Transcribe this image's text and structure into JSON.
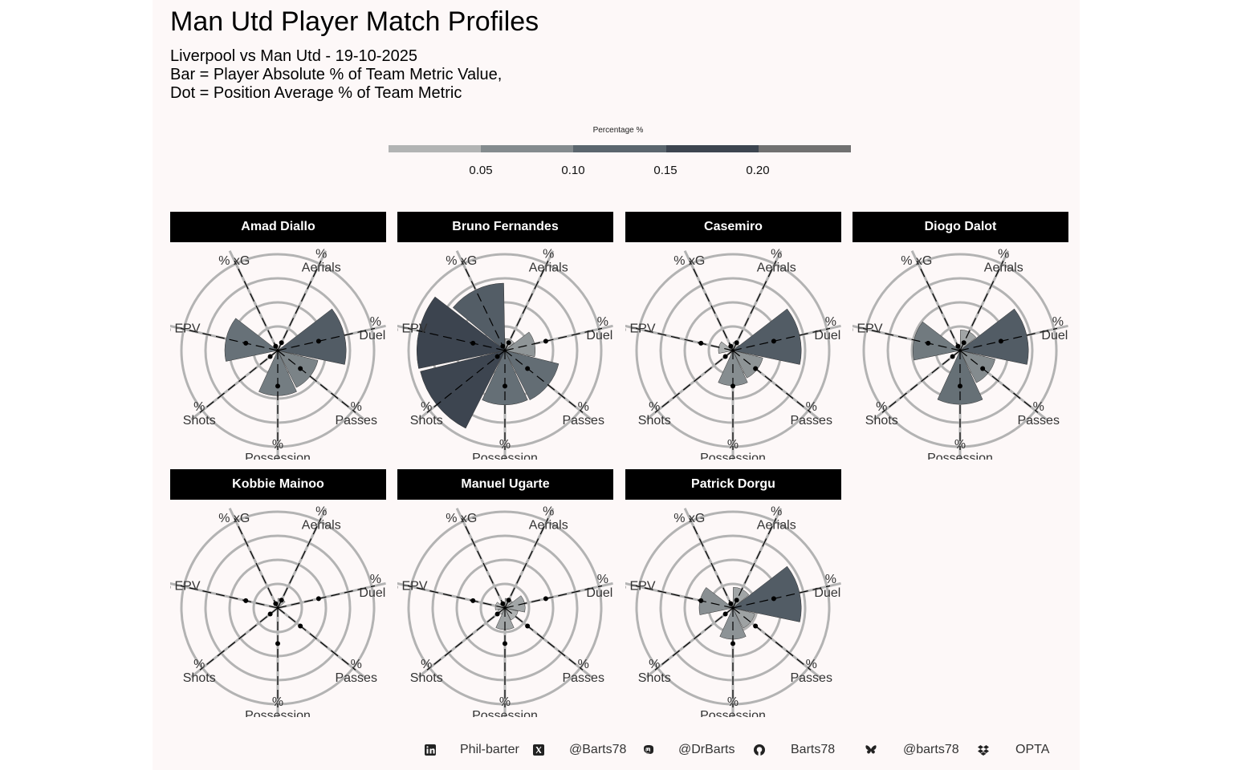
{
  "header": {
    "title": "Man Utd Player Match Profiles",
    "subtitle_lines": [
      "Liverpool vs Man Utd - 19-10-2025",
      "Bar = Player Absolute % of Team Metric Value,",
      "Dot = Position Average % of Team Metric"
    ]
  },
  "legend": {
    "title": "Percentage %",
    "ticks": [
      "0.05",
      "0.10",
      "0.15",
      "0.20"
    ],
    "colors": [
      "#b2b4b4",
      "#848b8e",
      "#5b666e",
      "#3d4550",
      "#717171"
    ]
  },
  "chart_data": {
    "type": "bar",
    "subtype": "polar",
    "axis_labels": [
      [
        "%",
        "Aerials"
      ],
      [
        "%",
        "Duels"
      ],
      [
        "%",
        "Passes"
      ],
      [
        "%",
        "Possession"
      ],
      [
        "%",
        "Shots"
      ],
      [
        "% EPV"
      ],
      [
        "% xG"
      ]
    ],
    "categories": [
      "% Aerials",
      "% Duels",
      "% Passes",
      "% Possession",
      "% Shots",
      "% EPV",
      "% xG"
    ],
    "rmax": 0.2,
    "grid_rings": [
      0.05,
      0.1,
      0.15,
      0.2
    ],
    "position_average": [
      0.018,
      0.087,
      0.06,
      0.074,
      0.02,
      0.068,
      0.01
    ],
    "panels": [
      {
        "player": "Amad Diallo",
        "values": [
          0,
          0.142,
          0.086,
          0.094,
          0,
          0.11,
          0
        ]
      },
      {
        "player": "Bruno Fernandes",
        "values": [
          0.025,
          0.063,
          0.115,
          0.113,
          0.181,
          0.183,
          0.14
        ]
      },
      {
        "player": "Casemiro",
        "values": [
          0.017,
          0.142,
          0.064,
          0.073,
          0.006,
          0.03,
          0.004
        ]
      },
      {
        "player": "Diogo Dalot",
        "values": [
          0.043,
          0.142,
          0.075,
          0.112,
          0,
          0.098,
          0
        ]
      },
      {
        "player": "Kobbie Mainoo",
        "values": [
          0.02,
          0,
          0,
          0,
          0,
          0,
          0
        ]
      },
      {
        "player": "Manuel Ugarte",
        "values": [
          0.02,
          0.042,
          0.028,
          0.045,
          0.015,
          0.02,
          0.008
        ]
      },
      {
        "player": "Patrick Dorgu",
        "values": [
          0.043,
          0.142,
          0.047,
          0.065,
          0,
          0.07,
          0
        ]
      }
    ]
  },
  "footer": [
    {
      "icon": "linkedin-icon",
      "text": "Phil-barter"
    },
    {
      "icon": "x-twitter-icon",
      "text": "@Barts78"
    },
    {
      "icon": "mastodon-icon",
      "text": "@DrBarts"
    },
    {
      "icon": "github-icon",
      "text": "Barts78"
    },
    {
      "icon": "bluesky-icon",
      "text": "@barts78"
    },
    {
      "icon": "dropbox-icon",
      "text": "OPTA"
    }
  ]
}
